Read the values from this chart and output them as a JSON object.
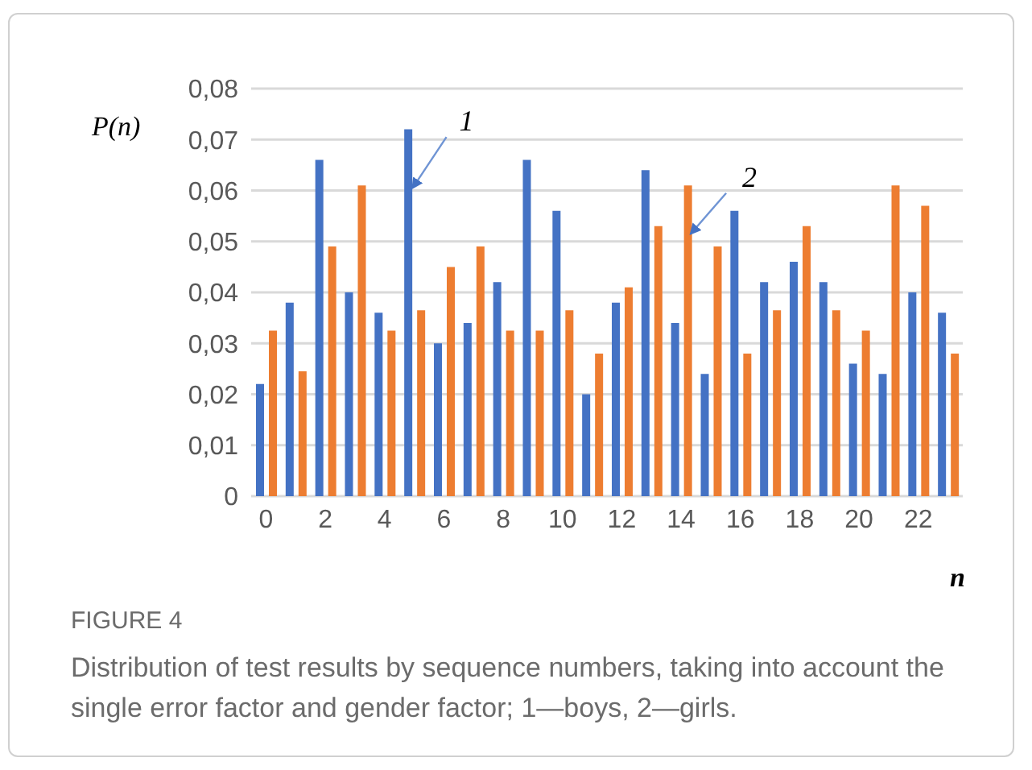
{
  "chart_data": {
    "type": "bar",
    "title": "FIGURE 4",
    "subtitle": "Distribution of test results by sequence numbers, taking into account the single error factor and gender factor; 1—boys, 2—girls.",
    "ylabel": "P(n)",
    "xlabel": "n",
    "categories": [
      "0",
      null,
      "2",
      null,
      "4",
      null,
      "6",
      null,
      "8",
      null,
      "10",
      null,
      "12",
      null,
      "14",
      null,
      "16",
      null,
      "18",
      null,
      "20",
      null,
      "22",
      null
    ],
    "series": [
      {
        "color": "#4472c4",
        "values": [
          0.022,
          0.038,
          0.066,
          0.04,
          0.036,
          0.072,
          0.03,
          0.034,
          0.042,
          0.066,
          0.056,
          0.02,
          0.038,
          0.064,
          0.034,
          0.024,
          0.056,
          0.042,
          0.046,
          0.042,
          0.026,
          0.024,
          0.04,
          0.036
        ]
      },
      {
        "color": "#ed7d31",
        "values": [
          0.0325,
          0.0245,
          0.049,
          0.061,
          0.0325,
          0.0365,
          0.045,
          0.049,
          0.0325,
          0.0325,
          0.0365,
          0.028,
          0.041,
          0.053,
          0.061,
          0.049,
          0.028,
          0.0365,
          0.053,
          0.0365,
          0.0325,
          0.061,
          0.057,
          0.028
        ]
      }
    ],
    "ylim": [
      0,
      0.08
    ],
    "yticks": [
      0,
      {
        "value": 0.01,
        "label": "0,01"
      },
      {
        "value": 0.02,
        "label": "0,02"
      },
      {
        "value": 0.03,
        "label": "0,03"
      },
      {
        "value": 0.04,
        "label": "0,04"
      },
      {
        "value": 0.05,
        "label": "0,05"
      },
      {
        "value": 0.06,
        "label": "0,06"
      },
      {
        "value": 0.07,
        "label": "0,07"
      },
      {
        "value": 0.08,
        "label": "0,08"
      }
    ],
    "grid": "y",
    "legend": false,
    "annotations": [
      "1",
      "2"
    ]
  }
}
